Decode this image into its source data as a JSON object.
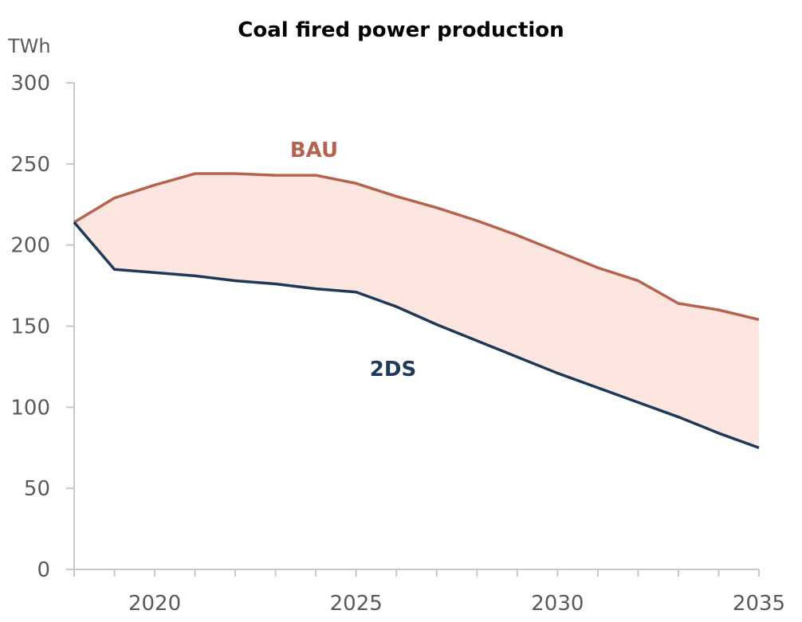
{
  "chart_data": {
    "type": "area",
    "title": "Coal fired power production",
    "ylabel": "TWh",
    "xlabel": "",
    "xlim": [
      2018,
      2035
    ],
    "ylim": [
      0,
      300
    ],
    "yticks": [
      0,
      50,
      100,
      150,
      200,
      250,
      300
    ],
    "xticks": [
      2020,
      2025,
      2030,
      2035
    ],
    "grid": false,
    "x": [
      2018,
      2019,
      2020,
      2021,
      2022,
      2023,
      2024,
      2025,
      2026,
      2027,
      2028,
      2029,
      2030,
      2031,
      2032,
      2033,
      2034,
      2035
    ],
    "series": [
      {
        "name": "BAU",
        "color": "#b5634f",
        "values": [
          214,
          229,
          237,
          244,
          244,
          243,
          243,
          238,
          230,
          223,
          215,
          206,
          196,
          186,
          178,
          164,
          160,
          154
        ]
      },
      {
        "name": "2DS",
        "color": "#1f3a57",
        "values": [
          214,
          185,
          183,
          181,
          178,
          176,
          173,
          171,
          162,
          151,
          141,
          131,
          121,
          112,
          103,
          94,
          84,
          75
        ]
      }
    ],
    "fill_between": {
      "color": "#fde6e0"
    }
  }
}
